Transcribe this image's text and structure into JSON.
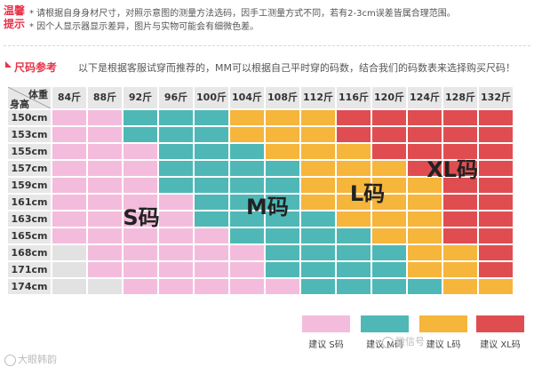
{
  "notice": {
    "label1": "温馨",
    "label2": "提示",
    "line1": "* 请根据自身身材尺寸，对照示意图的测量方法选码，因手工测量方式不同，若有2-3cm误差皆属合理范围。",
    "line2": "* 因个人显示器显示差异，图片与实物可能会有细微色差。"
  },
  "section": {
    "title": "尺码参考",
    "desc": "以下是根据客服试穿而推荐的，MM可以根据自己平时穿的码数，结合我们的码数表来选择购买尺码！"
  },
  "table": {
    "corner_weight": "体重",
    "corner_height": "身高",
    "weights": [
      "84斤",
      "88斤",
      "92斤",
      "96斤",
      "100斤",
      "104斤",
      "108斤",
      "112斤",
      "116斤",
      "120斤",
      "124斤",
      "128斤",
      "132斤"
    ],
    "heights": [
      "150cm",
      "153cm",
      "155cm",
      "157cm",
      "159cm",
      "161cm",
      "163cm",
      "165cm",
      "168cm",
      "171cm",
      "174cm"
    ],
    "grid": [
      "SSMMMLLLXXXXX",
      "SSMMMLLLXXXXX",
      "SSSMMMLLLXXXX",
      "SSSMMMMLLLXXX",
      "SSSMMMMLLLLXX",
      "SSSSMMMLLLLXX",
      "SSSSMMMMLLLXX",
      "SSSSSMMMMLLXX",
      "GSSSSSMMMMLLX",
      "GSSSSSMMMMLLX",
      "GGSSSSSMMMMLL"
    ],
    "size_labels": [
      "S码",
      "M码",
      "L码",
      "XL码"
    ],
    "colors": {
      "S": "#f4bcdc",
      "M": "#4fb8b6",
      "L": "#f6b53b",
      "X": "#e04d51",
      "G": "#e2e2e2",
      "H": "#e7e7e7"
    }
  },
  "legend": [
    {
      "key": "S",
      "label": "建议 S码"
    },
    {
      "key": "M",
      "label": "建议 M码"
    },
    {
      "key": "L",
      "label": "建议 L码"
    },
    {
      "key": "X",
      "label": "建议 XL码"
    }
  ],
  "watermarks": {
    "bottom_left": "大眼韩韵",
    "bottom_right": "微信号"
  }
}
